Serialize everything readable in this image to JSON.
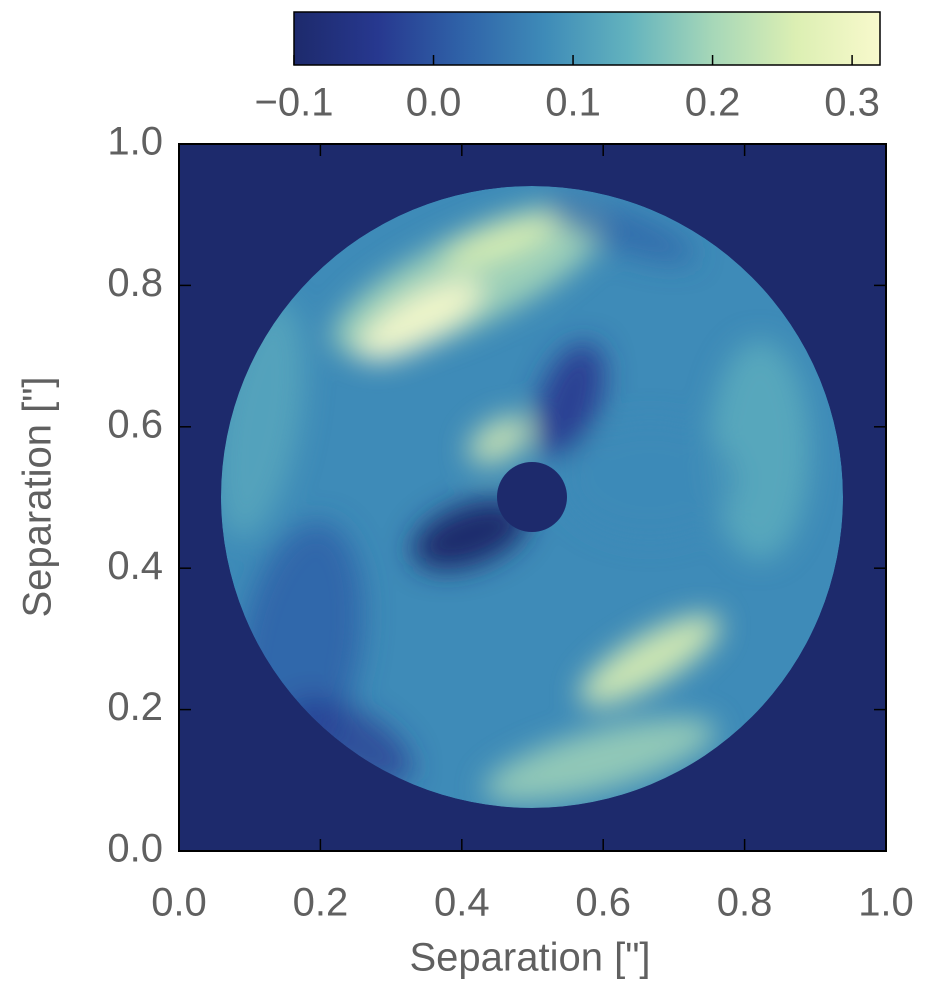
{
  "chart_data": {
    "type": "image",
    "xlabel": "Separation [\"]",
    "ylabel": "Separation [\"]",
    "xlim": [
      0,
      1
    ],
    "ylim": [
      0,
      1
    ],
    "xticks": [
      {
        "value": 0,
        "label": "0.0"
      },
      {
        "value": 0.2,
        "label": "0.2"
      },
      {
        "value": 0.4,
        "label": "0.4"
      },
      {
        "value": 0.6,
        "label": "0.6"
      },
      {
        "value": 0.8,
        "label": "0.8"
      },
      {
        "value": 1,
        "label": "1.0"
      }
    ],
    "yticks": [
      {
        "value": 0,
        "label": "0.0"
      },
      {
        "value": 0.2,
        "label": "0.2"
      },
      {
        "value": 0.4,
        "label": "0.4"
      },
      {
        "value": 0.6,
        "label": "0.6"
      },
      {
        "value": 0.8,
        "label": "0.8"
      },
      {
        "value": 1,
        "label": "1.0"
      }
    ],
    "colorbar": {
      "lim": [
        -0.1,
        0.32
      ],
      "ticks": [
        {
          "value": -0.1,
          "label": "−0.1"
        },
        {
          "value": 0,
          "label": "0.0"
        },
        {
          "value": 0.1,
          "label": "0.1"
        },
        {
          "value": 0.2,
          "label": "0.2"
        },
        {
          "value": 0.3,
          "label": "0.3"
        }
      ],
      "position": "top"
    },
    "colormap": [
      "#1d2a6c",
      "#27388f",
      "#2f62a8",
      "#3e8bb8",
      "#63b3be",
      "#a6d7b8",
      "#dcefb3",
      "#f8f9cc"
    ]
  }
}
